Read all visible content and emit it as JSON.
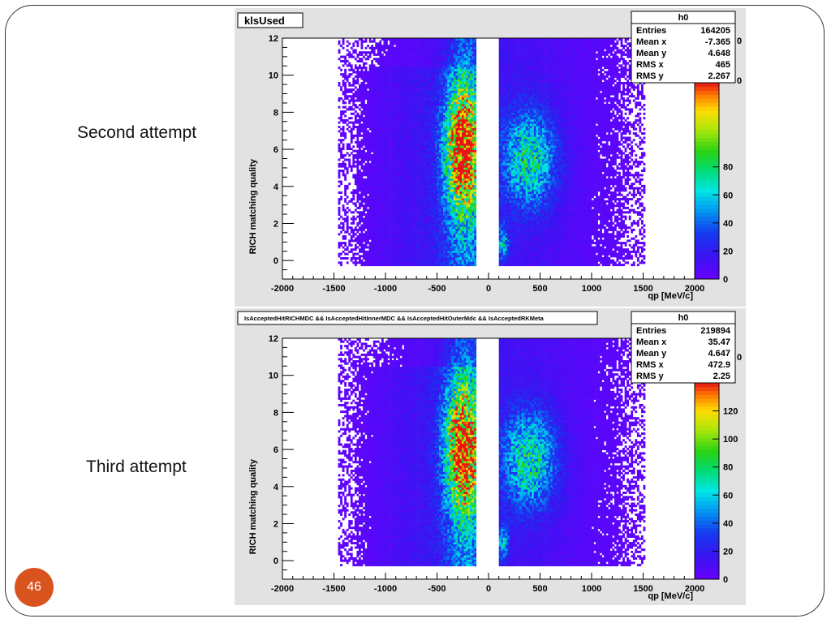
{
  "slide": {
    "page_number": "46",
    "captions": [
      "Second attempt",
      "Third attempt"
    ]
  },
  "chart_data": [
    {
      "type": "heatmap",
      "title": "klsUsed",
      "xlabel": "qp [MeV/c]",
      "ylabel": "RICH matching quality",
      "xlim": [
        -2000,
        2000
      ],
      "ylim": [
        -1,
        12
      ],
      "x_ticks": [
        -2000,
        -1500,
        -1000,
        -500,
        0,
        500,
        1000,
        1500,
        2000
      ],
      "y_ticks": [
        0,
        2,
        4,
        6,
        8,
        10,
        12
      ],
      "colorbar": {
        "max": 140,
        "ticks": [
          0,
          20,
          40,
          60,
          80
        ],
        "clipped_labels": [
          "0",
          "0"
        ]
      },
      "stats": {
        "name": "h0",
        "rows": [
          {
            "label": "Entries",
            "value": "164205"
          },
          {
            "label": "Mean x",
            "value": "-7.365"
          },
          {
            "label": "Mean y",
            "value": "4.648"
          },
          {
            "label": "RMS x",
            "value": "465"
          },
          {
            "label": "RMS y",
            "value": "2.267"
          }
        ]
      },
      "density": {
        "x_ranges": [
          [
            -1450,
            -120
          ],
          [
            110,
            1520
          ]
        ],
        "neg_peak": {
          "x": -240,
          "y": 6,
          "value": 140
        },
        "pos_peak": {
          "x": 400,
          "y": 5.5,
          "value": 60
        },
        "low_x_spot": {
          "x": 140,
          "y": 1,
          "value": 45
        }
      }
    },
    {
      "type": "heatmap",
      "title": "IsAcceptedHitRICHMDC && IsAcceptedHitInnerMDC && IsAcceptedHitOuterMdc && IsAcceptedRKMeta",
      "xlabel": "qp [MeV/c]",
      "ylabel": "RICH matching quality",
      "xlim": [
        -2000,
        2000
      ],
      "ylim": [
        -1,
        12
      ],
      "x_ticks": [
        -2000,
        -1500,
        -1000,
        -500,
        0,
        500,
        1000,
        1500,
        2000
      ],
      "y_ticks": [
        0,
        2,
        4,
        6,
        8,
        10,
        12
      ],
      "colorbar": {
        "max": 140,
        "ticks": [
          0,
          20,
          40,
          60,
          80,
          100,
          120
        ],
        "clipped_labels": [
          "0"
        ]
      },
      "stats": {
        "name": "h0",
        "rows": [
          {
            "label": "Entries",
            "value": "219894"
          },
          {
            "label": "Mean x",
            "value": "35.47"
          },
          {
            "label": "Mean y",
            "value": "4.647"
          },
          {
            "label": "RMS x",
            "value": "472.9"
          },
          {
            "label": "RMS y",
            "value": "2.25"
          }
        ]
      },
      "density": {
        "x_ranges": [
          [
            -1450,
            -120
          ],
          [
            110,
            1520
          ]
        ],
        "neg_peak": {
          "x": -240,
          "y": 6,
          "value": 140
        },
        "pos_peak": {
          "x": 400,
          "y": 5.5,
          "value": 60
        },
        "low_x_spot": {
          "x": 140,
          "y": 1,
          "value": 45
        }
      }
    }
  ]
}
